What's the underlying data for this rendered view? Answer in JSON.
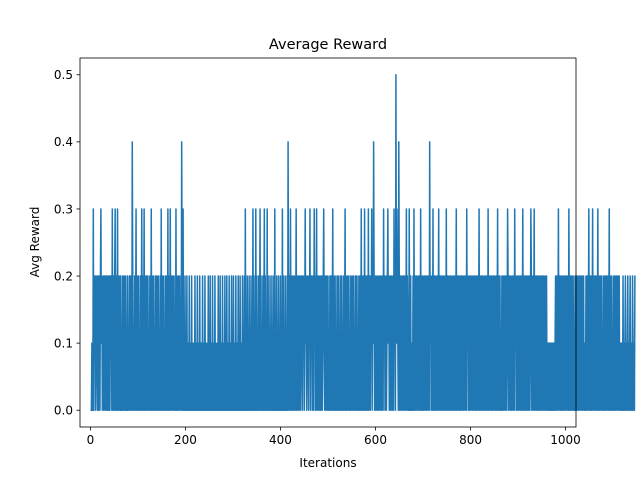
{
  "chart_data": {
    "type": "line",
    "title": "Average Reward",
    "xlabel": "Iterations",
    "ylabel": "Avg Reward",
    "xlim": [
      -22,
      1022
    ],
    "ylim": [
      -0.025,
      0.525
    ],
    "xticks": [
      0,
      200,
      400,
      600,
      800,
      1000
    ],
    "yticks": [
      0.0,
      0.1,
      0.2,
      0.3,
      0.4,
      0.5
    ],
    "xtick_labels": [
      "0",
      "200",
      "400",
      "600",
      "800",
      "1000"
    ],
    "ytick_labels": [
      "0.0",
      "0.1",
      "0.2",
      "0.3",
      "0.4",
      "0.5"
    ],
    "grid": false,
    "series": [
      {
        "color": "#1f77b4",
        "x_start": 0,
        "x_step": 1,
        "values": [
          0,
          0,
          0,
          0.1,
          0,
          0,
          0.3,
          0,
          0.2,
          0.1,
          0.2,
          0,
          0.1,
          0.2,
          0.1,
          0,
          0.2,
          0,
          0.2,
          0.1,
          0,
          0.2,
          0.3,
          0.1,
          0.2,
          0,
          0.1,
          0.2,
          0,
          0.2,
          0.1,
          0,
          0.2,
          0.1,
          0,
          0.2,
          0,
          0.2,
          0.1,
          0,
          0.2,
          0,
          0.2,
          0.1,
          0.2,
          0,
          0.3,
          0,
          0.1,
          0.2,
          0,
          0.2,
          0.3,
          0,
          0.2,
          0,
          0.1,
          0.3,
          0,
          0.2,
          0,
          0.1,
          0.2,
          0,
          0.2,
          0,
          0.1,
          0,
          0.2,
          0.1,
          0,
          0.2,
          0,
          0.1,
          0.2,
          0,
          0.1,
          0,
          0.2,
          0,
          0.1,
          0,
          0.2,
          0.1,
          0,
          0.2,
          0.1,
          0,
          0.4,
          0.2,
          0,
          0.1,
          0,
          0.2,
          0,
          0.1,
          0.3,
          0,
          0.2,
          0,
          0.1,
          0.2,
          0,
          0.1,
          0,
          0.2,
          0,
          0.1,
          0.3,
          0,
          0.2,
          0,
          0.1,
          0.3,
          0,
          0.2,
          0,
          0.1,
          0.2,
          0,
          0.1,
          0.2,
          0,
          0.1,
          0,
          0.2,
          0.1,
          0,
          0.3,
          0,
          0.2,
          0,
          0.1,
          0.2,
          0,
          0.1,
          0,
          0.2,
          0.1,
          0,
          0.2,
          0,
          0.1,
          0.2,
          0,
          0.1,
          0,
          0.2,
          0,
          0.3,
          0,
          0.2,
          0,
          0.1,
          0.2,
          0,
          0.1,
          0,
          0.2,
          0,
          0.1,
          0.2,
          0,
          0.3,
          0,
          0.2,
          0,
          0.1,
          0.3,
          0,
          0.2,
          0.1,
          0,
          0.2,
          0,
          0.1,
          0.2,
          0,
          0.1,
          0,
          0.3,
          0,
          0.2,
          0,
          0.1,
          0.2,
          0,
          0.1,
          0.2,
          0,
          0.1,
          0,
          0.4,
          0.2,
          0,
          0.3,
          0,
          0.1,
          0,
          0.2,
          0,
          0.1,
          0,
          0.2,
          0,
          0.1,
          0,
          0,
          0.2,
          0,
          0.1,
          0,
          0,
          0.2,
          0,
          0.1,
          0,
          0,
          0.1,
          0,
          0.2,
          0,
          0,
          0.1,
          0,
          0.2,
          0,
          0,
          0.1,
          0,
          0.2,
          0,
          0,
          0.1,
          0,
          0,
          0.2,
          0,
          0.1,
          0,
          0,
          0.2,
          0,
          0.1,
          0,
          0,
          0.1,
          0,
          0.2,
          0,
          0.1,
          0,
          0.2,
          0,
          0,
          0.1,
          0,
          0.2,
          0,
          0.1,
          0,
          0,
          0.2,
          0,
          0.1,
          0,
          0,
          0.1,
          0,
          0.2,
          0,
          0.1,
          0,
          0.2,
          0,
          0,
          0.1,
          0,
          0.2,
          0,
          0.1,
          0,
          0,
          0.2,
          0,
          0.1,
          0,
          0.2,
          0,
          0.1,
          0,
          0,
          0.2,
          0,
          0.1,
          0,
          0,
          0.2,
          0,
          0.1,
          0,
          0.2,
          0,
          0,
          0.1,
          0,
          0.2,
          0,
          0.1,
          0,
          0,
          0.2,
          0,
          0.1,
          0,
          0.2,
          0,
          0.1,
          0,
          0,
          0.2,
          0,
          0.1,
          0,
          0.2,
          0,
          0.3,
          0,
          0.1,
          0,
          0.2,
          0,
          0.1,
          0,
          0.2,
          0,
          0.1,
          0,
          0.2,
          0,
          0.1,
          0,
          0.3,
          0,
          0.2,
          0,
          0.1,
          0,
          0.3,
          0,
          0.2,
          0,
          0.1,
          0,
          0.2,
          0,
          0.1,
          0.3,
          0,
          0.2,
          0,
          0.1,
          0,
          0.2,
          0,
          0.1,
          0.3,
          0,
          0.2,
          0,
          0.1,
          0,
          0.3,
          0,
          0.2,
          0,
          0.1,
          0,
          0.2,
          0,
          0.1,
          0,
          0.2,
          0,
          0.1,
          0,
          0.2,
          0,
          0.3,
          0,
          0.1,
          0,
          0.2,
          0,
          0.1,
          0,
          0.2,
          0,
          0.1,
          0,
          0.2,
          0,
          0.1,
          0,
          0.3,
          0,
          0.2,
          0,
          0.1,
          0,
          0.2,
          0,
          0.1,
          0,
          0.2,
          0,
          0.4,
          0.1,
          0,
          0.2,
          0,
          0.3,
          0.1,
          0,
          0.2,
          0,
          0.1,
          0.2,
          0,
          0.1,
          0.2,
          0,
          0.1,
          0.3,
          0,
          0.2,
          0,
          0.1,
          0.2,
          0,
          0.1,
          0.2,
          0,
          0.1,
          0.2,
          0.1,
          0,
          0.2,
          0.1,
          0.2,
          0,
          0.1,
          0.3,
          0.1,
          0.2,
          0,
          0.1,
          0.2,
          0.1,
          0,
          0.2,
          0.1,
          0.3,
          0,
          0.2,
          0.1,
          0.2,
          0,
          0.1,
          0.2,
          0,
          0.3,
          0.1,
          0.2,
          0,
          0.1,
          0.3,
          0,
          0.2,
          0.1,
          0,
          0.2,
          0.1,
          0,
          0.2,
          0,
          0.1,
          0.2,
          0,
          0.1,
          0.2,
          0.3,
          0.1,
          0,
          0.2,
          0.1,
          0,
          0.2,
          0,
          0.1,
          0.2,
          0,
          0.1,
          0,
          0.2,
          0.1,
          0,
          0.2,
          0,
          0.1,
          0.3,
          0,
          0.2,
          0,
          0.1,
          0.2,
          0,
          0.1,
          0,
          0.2,
          0,
          0.1,
          0.2,
          0,
          0.1,
          0,
          0.2,
          0,
          0.1,
          0.2,
          0,
          0.1,
          0,
          0.2,
          0,
          0.1,
          0.3,
          0,
          0.2,
          0,
          0.1,
          0.2,
          0,
          0.1,
          0.2,
          0,
          0.1,
          0,
          0.2,
          0,
          0.1,
          0.2,
          0,
          0.1,
          0.2,
          0,
          0.1,
          0,
          0.2,
          0,
          0.1,
          0.2,
          0,
          0.1,
          0,
          0.2,
          0,
          0.1,
          0.2,
          0,
          0.3,
          0,
          0.2,
          0,
          0.1,
          0.2,
          0,
          0.3,
          0,
          0.1,
          0.2,
          0,
          0.1,
          0.2,
          0,
          0.3,
          0,
          0.2,
          0.1,
          0,
          0.2,
          0.1,
          0.3,
          0,
          0.2,
          0.1,
          0.4,
          0.2,
          0,
          0.1,
          0.2,
          0,
          0.1,
          0.2,
          0,
          0.1,
          0.2,
          0,
          0.1,
          0.2,
          0,
          0.1,
          0.2,
          0,
          0.1,
          0.2,
          0,
          0.3,
          0.1,
          0.2,
          0,
          0.1,
          0.2,
          0,
          0.1,
          0.2,
          0.3,
          0.1,
          0.2,
          0,
          0.1,
          0.2,
          0,
          0.1,
          0.2,
          0,
          0.1,
          0.2,
          0,
          0.3,
          0.1,
          0.2,
          0,
          0.5,
          0.1,
          0.3,
          0.2,
          0.1,
          0,
          0.4,
          0.2,
          0,
          0.1,
          0.2,
          0,
          0.1,
          0.2,
          0,
          0.1,
          0.2,
          0,
          0.1,
          0.2,
          0,
          0.1,
          0.3,
          0,
          0.2,
          0.1,
          0,
          0,
          0.3,
          0,
          0,
          0.2,
          0,
          0.1,
          0,
          0,
          0.2,
          0,
          0.3,
          0,
          0.1,
          0.2,
          0,
          0.1,
          0.2,
          0,
          0.1,
          0.2,
          0,
          0.1,
          0.2,
          0,
          0.3,
          0,
          0.2,
          0.1,
          0,
          0.2,
          0,
          0.1,
          0.2,
          0,
          0.1,
          0.2,
          0,
          0.1,
          0.2,
          0,
          0.1,
          0.2,
          0,
          0.4,
          0.1,
          0.2,
          0,
          0.1,
          0.2,
          0,
          0.3,
          0,
          0.1,
          0.2,
          0,
          0.1,
          0.2,
          0,
          0.1,
          0.2,
          0,
          0.1,
          0.3,
          0,
          0.2,
          0.1,
          0,
          0.2,
          0.1,
          0,
          0.2,
          0,
          0.1,
          0.2,
          0,
          0.1,
          0.2,
          0,
          0.3,
          0,
          0.1,
          0.2,
          0,
          0.1,
          0.2,
          0,
          0.1,
          0.2,
          0,
          0.1,
          0.2,
          0,
          0.1,
          0.2,
          0,
          0.1,
          0.2,
          0,
          0.1,
          0.3,
          0,
          0.2,
          0.1,
          0,
          0.2,
          0.1,
          0,
          0.2,
          0,
          0.1,
          0.2,
          0,
          0.1,
          0.2,
          0,
          0.1,
          0.2,
          0,
          0.1,
          0.2,
          0,
          0.3,
          0.1,
          0.2,
          0,
          0.1,
          0.2,
          0,
          0.1,
          0.2,
          0,
          0.1,
          0.2,
          0,
          0.1,
          0.2,
          0,
          0.1,
          0.2,
          0,
          0.1,
          0.2,
          0,
          0.1,
          0.2,
          0,
          0.1,
          0.3,
          0,
          0.2,
          0.1,
          0,
          0.2,
          0,
          0.1,
          0.2,
          0,
          0.1,
          0.2,
          0,
          0.1,
          0.2,
          0,
          0.1,
          0.2,
          0,
          0.3,
          0,
          0.2,
          0.1,
          0,
          0.2,
          0.1,
          0,
          0.2,
          0,
          0.1,
          0.2,
          0,
          0.1,
          0.2,
          0,
          0.1,
          0.2,
          0,
          0.1,
          0.3,
          0,
          0.2,
          0.1,
          0,
          0.2,
          0,
          0.1,
          0,
          0.2,
          0,
          0.1,
          0.2,
          0,
          0.1,
          0.2,
          0,
          0.1,
          0.2,
          0,
          0.1,
          0.3,
          0.2,
          0,
          0.1,
          0.2,
          0,
          0.1,
          0.2,
          0,
          0.1,
          0.2,
          0,
          0.1,
          0.2,
          0,
          0.3,
          0.1,
          0.2,
          0,
          0.1,
          0.2,
          0,
          0.1,
          0.2,
          0,
          0.1,
          0.2,
          0,
          0.1,
          0.2,
          0,
          0.1,
          0.3,
          0,
          0.2,
          0.1,
          0,
          0.2,
          0.1,
          0,
          0.2,
          0,
          0.1,
          0.2,
          0,
          0.1,
          0.2,
          0,
          0.1,
          0.3,
          0.2,
          0,
          0.1,
          0.2,
          0,
          0.1,
          0.3,
          0,
          0.2,
          0.1,
          0,
          0.2,
          0,
          0.1,
          0.2,
          0,
          0.1,
          0.2,
          0,
          0.1,
          0.2,
          0,
          0.1,
          0.2,
          0,
          0.1,
          0.2,
          0,
          0.1,
          0.2,
          0,
          0.1,
          0.2,
          0,
          0.1,
          0,
          0.1,
          0,
          0.1,
          0,
          0.1,
          0,
          0.1,
          0,
          0.1,
          0,
          0.1,
          0,
          0.1,
          0,
          0.1,
          0.2,
          0,
          0.1,
          0.2,
          0,
          0.1,
          0.3,
          0,
          0.2,
          0.1,
          0,
          0.2,
          0,
          0.1,
          0.2,
          0,
          0.1,
          0.2,
          0,
          0.1,
          0.2,
          0,
          0.1,
          0.2,
          0,
          0.1,
          0.2,
          0,
          0.3,
          0.1,
          0,
          0.2,
          0,
          0.1,
          0.2,
          0,
          0.1,
          0.2,
          0,
          0.1,
          0,
          0.2,
          0,
          0.1,
          0.2,
          0,
          0.1,
          0.2,
          0,
          0.1,
          0.2,
          0,
          0.1,
          0.2,
          0,
          0.1,
          0.2,
          0,
          0.1,
          0.2,
          0,
          0,
          0.1,
          0,
          0.2,
          0,
          0.1,
          0.2,
          0,
          0.1,
          0.3,
          0,
          0.2,
          0.1,
          0,
          0.2,
          0,
          0.1,
          0.3,
          0,
          0.2,
          0.1,
          0,
          0.2,
          0.1,
          0,
          0.2,
          0,
          0.1,
          0.3,
          0,
          0.2,
          0,
          0.1,
          0.2,
          0,
          0.1,
          0.2,
          0,
          0.1,
          0,
          0.2,
          0,
          0.1,
          0.2,
          0,
          0.1,
          0.2,
          0,
          0.1,
          0.2,
          0,
          0.1,
          0.3,
          0,
          0.2,
          0,
          0.1,
          0.2,
          0,
          0.1,
          0,
          0.2,
          0,
          0.1,
          0.2,
          0,
          0.1,
          0.2,
          0,
          0.1,
          0.2,
          0,
          0.1,
          0.2,
          0,
          0.1,
          0,
          0.1,
          0,
          0.1,
          0,
          0.2,
          0,
          0.1,
          0,
          0.1,
          0.2,
          0,
          0.1,
          0,
          0.1,
          0.2,
          0,
          0.1,
          0,
          0.1,
          0.2,
          0,
          0.1,
          0,
          0,
          0.2,
          0.1,
          0,
          0.1,
          0,
          0.2,
          0.2
        ]
      }
    ]
  }
}
